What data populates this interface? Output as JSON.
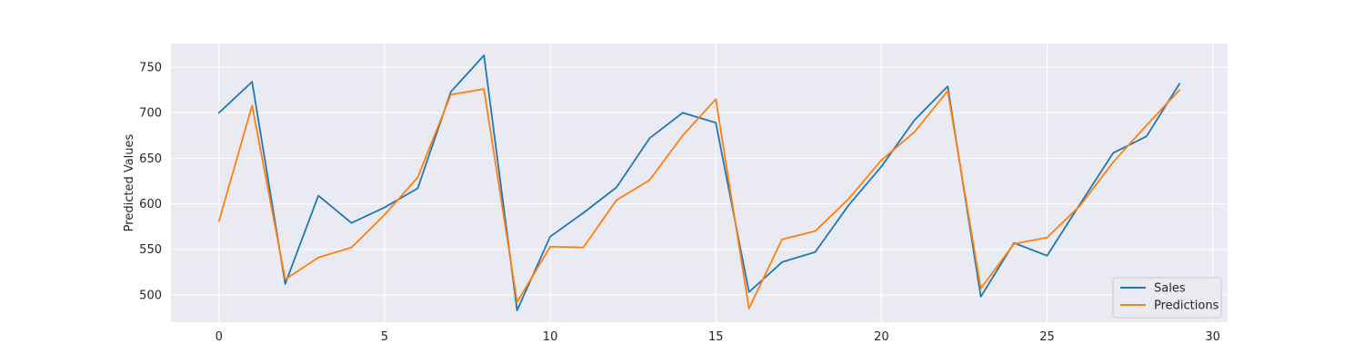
{
  "chart_data": {
    "type": "line",
    "title": "",
    "xlabel": "",
    "ylabel": "Predicted Values",
    "xlim": [
      -1.45,
      30.45
    ],
    "ylim": [
      470,
      776
    ],
    "xticks": [
      0,
      5,
      10,
      15,
      20,
      25,
      30
    ],
    "yticks": [
      500,
      550,
      600,
      650,
      700,
      750
    ],
    "grid": true,
    "legend_position": "lower-right",
    "x": [
      0,
      1,
      2,
      3,
      4,
      5,
      6,
      7,
      8,
      9,
      10,
      11,
      12,
      13,
      14,
      15,
      16,
      17,
      18,
      19,
      20,
      21,
      22,
      23,
      24,
      25,
      26,
      27,
      28,
      29
    ],
    "series": [
      {
        "name": "Sales",
        "color": "#1f77b4",
        "values": [
          700,
          734,
          512,
          609,
          579,
          596,
          617,
          723,
          763,
          483,
          564,
          590,
          618,
          672,
          700,
          689,
          503,
          536,
          547,
          598,
          641,
          692,
          729,
          498,
          557,
          543,
          600,
          656,
          674,
          732
        ]
      },
      {
        "name": "Predictions",
        "color": "#ff7f0e",
        "values": [
          581,
          708,
          517,
          541,
          552,
          588,
          629,
          720,
          726,
          492,
          553,
          552,
          604,
          626,
          675,
          715,
          485,
          561,
          570,
          605,
          648,
          679,
          724,
          507,
          556,
          563,
          598,
          646,
          686,
          725
        ]
      }
    ]
  },
  "colors": {
    "plot_background": "#eaeaf2",
    "grid": "#ffffff",
    "text": "#262626"
  }
}
